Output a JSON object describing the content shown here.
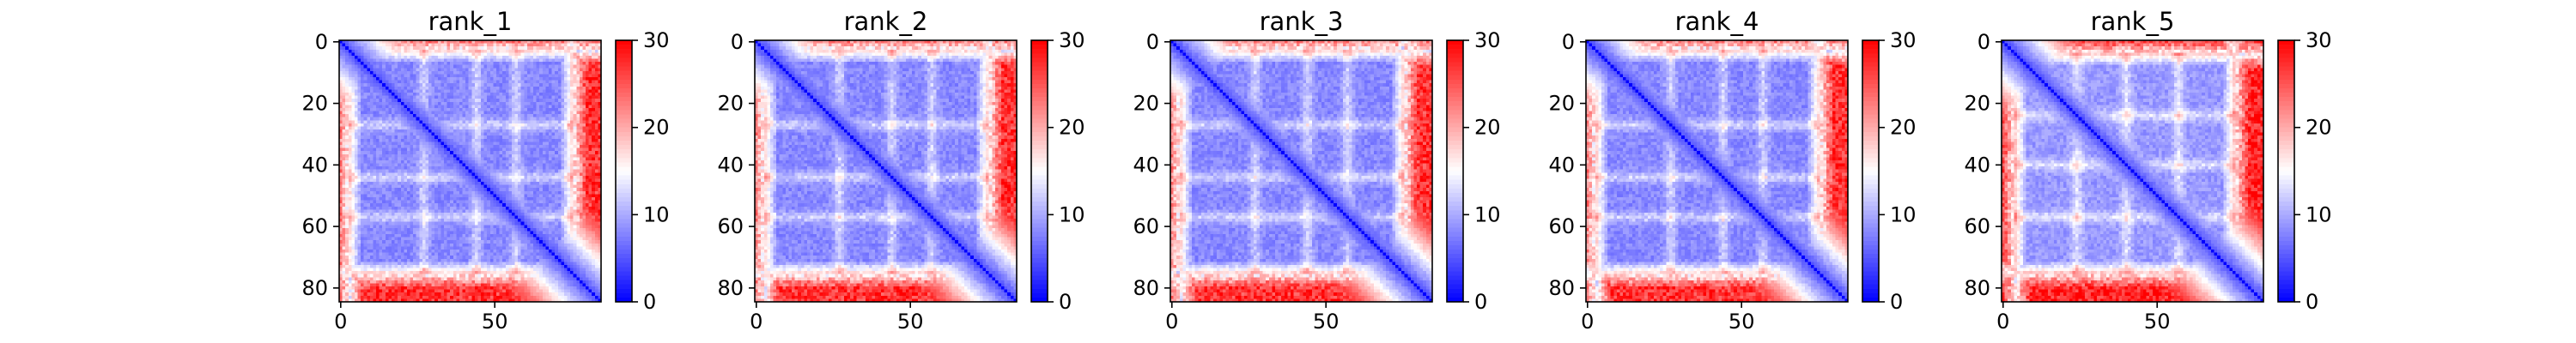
{
  "chart_data": [
    {
      "type": "heatmap",
      "title": "rank_1",
      "xlabel": "",
      "ylabel": "",
      "n": 85,
      "x_ticks": [
        0,
        50
      ],
      "y_ticks": [
        0,
        20,
        40,
        60,
        80
      ],
      "colorbar": {
        "range": [
          0,
          30
        ],
        "ticks": [
          0,
          10,
          20,
          30
        ],
        "colormap": [
          "#0000ff",
          "#ffffff",
          "#ff0000"
        ]
      },
      "structure": {
        "core_start": 3,
        "core_end": 75,
        "core_value": 8,
        "outer_value": 27,
        "band_centers": [
          27,
          44,
          57
        ]
      }
    },
    {
      "type": "heatmap",
      "title": "rank_2",
      "xlabel": "",
      "ylabel": "",
      "n": 85,
      "x_ticks": [
        0,
        50
      ],
      "y_ticks": [
        0,
        20,
        40,
        60,
        80
      ],
      "colorbar": {
        "range": [
          0,
          30
        ],
        "ticks": [
          0,
          10,
          20,
          30
        ],
        "colormap": [
          "#0000ff",
          "#ffffff",
          "#ff0000"
        ]
      },
      "structure": {
        "core_start": 3,
        "core_end": 75,
        "core_value": 8,
        "outer_value": 27,
        "band_centers": [
          27,
          44,
          57
        ]
      }
    },
    {
      "type": "heatmap",
      "title": "rank_3",
      "xlabel": "",
      "ylabel": "",
      "n": 85,
      "x_ticks": [
        0,
        50
      ],
      "y_ticks": [
        0,
        20,
        40,
        60,
        80
      ],
      "colorbar": {
        "range": [
          0,
          30
        ],
        "ticks": [
          0,
          10,
          20,
          30
        ],
        "colormap": [
          "#0000ff",
          "#ffffff",
          "#ff0000"
        ]
      },
      "structure": {
        "core_start": 3,
        "core_end": 75,
        "core_value": 8,
        "outer_value": 27,
        "band_centers": [
          27,
          44,
          57
        ]
      }
    },
    {
      "type": "heatmap",
      "title": "rank_4",
      "xlabel": "",
      "ylabel": "",
      "n": 85,
      "x_ticks": [
        0,
        50
      ],
      "y_ticks": [
        0,
        20,
        40,
        60,
        80
      ],
      "colorbar": {
        "range": [
          0,
          30
        ],
        "ticks": [
          0,
          10,
          20,
          30
        ],
        "colormap": [
          "#0000ff",
          "#ffffff",
          "#ff0000"
        ]
      },
      "structure": {
        "core_start": 3,
        "core_end": 75,
        "core_value": 8,
        "outer_value": 27,
        "band_centers": [
          27,
          44,
          57
        ]
      }
    },
    {
      "type": "heatmap",
      "title": "rank_5",
      "xlabel": "",
      "ylabel": "",
      "n": 85,
      "x_ticks": [
        0,
        50
      ],
      "y_ticks": [
        0,
        20,
        40,
        60,
        80
      ],
      "colorbar": {
        "range": [
          0,
          30
        ],
        "ticks": [
          0,
          10,
          20,
          30
        ],
        "colormap": [
          "#0000ff",
          "#ffffff",
          "#ff0000"
        ]
      },
      "structure": {
        "core_start": 4,
        "core_end": 75,
        "core_value": 9,
        "outer_value": 28,
        "band_centers": [
          24,
          40,
          57
        ]
      }
    }
  ]
}
